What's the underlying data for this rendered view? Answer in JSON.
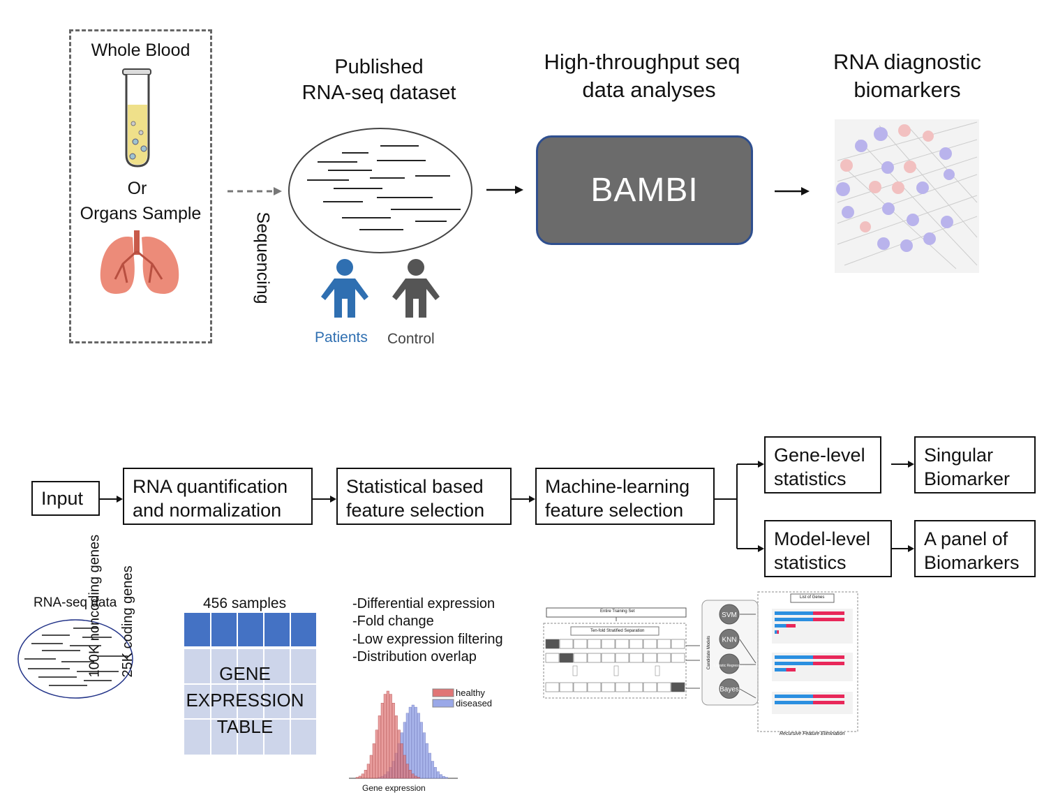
{
  "top": {
    "sample_box": {
      "line1": "Whole Blood",
      "line2": "Or",
      "line3": "Organs Sample"
    },
    "sequencing_label": "Sequencing",
    "dataset_title": [
      "Published",
      "RNA-seq dataset"
    ],
    "patients_label": "Patients",
    "control_label": "Control",
    "analysis_title": [
      "High-throughput seq",
      "data analyses"
    ],
    "bambi_label": "BAMBI",
    "biomarker_title": [
      "RNA diagnostic",
      "biomarkers"
    ]
  },
  "pipeline": {
    "input": "Input",
    "step1": [
      "RNA quantification",
      "and normalization"
    ],
    "step2": [
      "Statistical based",
      "feature selection"
    ],
    "step3": [
      "Machine-learning",
      "feature selection"
    ],
    "gene_stats": [
      "Gene-level",
      "statistics"
    ],
    "model_stats": [
      "Model-level",
      "statistics"
    ],
    "singular": [
      "Singular",
      "Biomarker"
    ],
    "panel": [
      "A panel of",
      "Biomarkers"
    ]
  },
  "details": {
    "rnaseq_label": "RNA-seq data",
    "samples_label": "456 samples",
    "noncoding_label": "100K noncoding genes",
    "coding_label": "25K coding genes",
    "table_text": [
      "GENE",
      "EXPRESSION",
      "TABLE"
    ],
    "stat_methods": [
      "-Differential expression",
      "-Fold change",
      "-Low expression filtering",
      "-Distribution overlap"
    ],
    "histogram_legend": [
      "healthy",
      "diseased"
    ],
    "histogram_xlabel": "Gene expression",
    "ml_models": [
      "SVM",
      "KNN",
      "Logistic Regression",
      "Bayes"
    ],
    "ml_candidate_label": "Candidate Models",
    "ml_training_label": "Entire Training Set",
    "ml_split_label": "Ten-fold Stratified Separation",
    "ml_genes_label": "List of Genes",
    "ml_rfe_label": "Recursive Feature Elimination"
  },
  "colors": {
    "patients_blue": "#2f6fb1",
    "control_gray": "#555555",
    "bambi_fill": "#6b6b6b",
    "bambi_border": "#2f4f8f",
    "table_header": "#4472c4",
    "table_body": "#cdd5ea",
    "healthy": "#e07575",
    "diseased": "#9aa8e8"
  }
}
